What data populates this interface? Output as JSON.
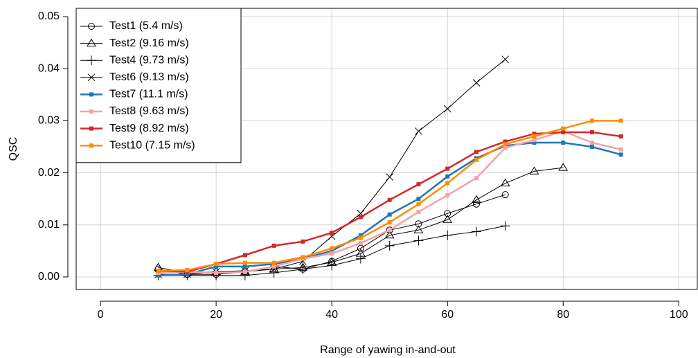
{
  "chart_data": {
    "type": "line",
    "xlabel": "Range of yawing in-and-out",
    "ylabel": "QSC",
    "xlim": [
      -4.2,
      103.2
    ],
    "ylim": [
      -0.0024,
      0.0516
    ],
    "xticks": [
      0,
      20,
      40,
      60,
      80,
      100
    ],
    "yticks": [
      {
        "value": 0,
        "label": "0.00"
      },
      0.01,
      0.02,
      0.03,
      0.04,
      0.05
    ],
    "grid": true,
    "legend": "top-left",
    "series": [
      {
        "name": "Test1 (5.4 m/s)",
        "color": "#000000",
        "marker": "circle",
        "x": [
          10,
          15,
          20,
          25,
          30,
          35,
          40,
          45,
          50,
          55,
          60,
          65,
          70
        ],
        "values": [
          0.0015,
          0.0005,
          0.0005,
          0.001,
          0.002,
          0.0015,
          0.003,
          0.0055,
          0.009,
          0.0102,
          0.0122,
          0.014,
          0.0158
        ]
      },
      {
        "name": "Test2 (9.16 m/s)",
        "color": "#000000",
        "marker": "triangle",
        "x": [
          10,
          15,
          20,
          25,
          30,
          35,
          40,
          45,
          50,
          55,
          60,
          65,
          70,
          75,
          80
        ],
        "values": [
          0.0018,
          0.0008,
          0.001,
          0.001,
          0.0015,
          0.0018,
          0.0028,
          0.0045,
          0.008,
          0.009,
          0.011,
          0.0148,
          0.018,
          0.0203,
          0.021
        ]
      },
      {
        "name": "Test4 (9.73 m/s)",
        "color": "#000000",
        "marker": "plus",
        "x": [
          10,
          15,
          20,
          25,
          30,
          35,
          40,
          45,
          50,
          55,
          60,
          65,
          70
        ],
        "values": [
          0.0003,
          0.0003,
          0.0003,
          0.0003,
          0.0008,
          0.0015,
          0.0022,
          0.0035,
          0.006,
          0.007,
          0.008,
          0.0087,
          0.0098
        ]
      },
      {
        "name": "Test6 (9.13 m/s)",
        "color": "#000000",
        "marker": "cross",
        "x": [
          10,
          15,
          20,
          25,
          30,
          35,
          40,
          45,
          50,
          55,
          60,
          65,
          70
        ],
        "values": [
          0.0005,
          0.0005,
          0.001,
          0.0012,
          0.0015,
          0.003,
          0.0078,
          0.0122,
          0.0192,
          0.028,
          0.0323,
          0.0373,
          0.0418
        ]
      },
      {
        "name": "Test7 (11.1 m/s)",
        "color": "#1f77b4",
        "marker": "square",
        "x": [
          10,
          15,
          20,
          25,
          30,
          35,
          40,
          45,
          50,
          55,
          60,
          65,
          70,
          75,
          80,
          85,
          90
        ],
        "values": [
          0.0003,
          0.0005,
          0.002,
          0.002,
          0.0025,
          0.0035,
          0.005,
          0.008,
          0.012,
          0.015,
          0.0193,
          0.0228,
          0.0252,
          0.0258,
          0.0258,
          0.025,
          0.0235
        ]
      },
      {
        "name": "Test8 (9.63 m/s)",
        "color": "#f7a1a8",
        "marker": "square",
        "x": [
          10,
          15,
          20,
          25,
          30,
          35,
          40,
          45,
          50,
          55,
          60,
          65,
          70,
          75,
          80,
          85,
          90
        ],
        "values": [
          0.0008,
          0.001,
          0.0008,
          0.001,
          0.002,
          0.0035,
          0.0045,
          0.0065,
          0.009,
          0.0125,
          0.0157,
          0.019,
          0.0248,
          0.0263,
          0.028,
          0.0258,
          0.0245
        ]
      },
      {
        "name": "Test9 (8.92 m/s)",
        "color": "#d62728",
        "marker": "square",
        "x": [
          10,
          15,
          20,
          25,
          30,
          35,
          40,
          45,
          50,
          55,
          60,
          65,
          70,
          75,
          80,
          85,
          90
        ],
        "values": [
          0.0012,
          0.001,
          0.0025,
          0.0042,
          0.006,
          0.0068,
          0.0085,
          0.0115,
          0.0148,
          0.0178,
          0.0208,
          0.024,
          0.026,
          0.0275,
          0.0278,
          0.0278,
          0.027
        ]
      },
      {
        "name": "Test10 (7.15 m/s)",
        "color": "#ff8c00",
        "marker": "square",
        "x": [
          10,
          15,
          20,
          25,
          30,
          35,
          40,
          45,
          50,
          55,
          60,
          65,
          70,
          75,
          80,
          85,
          90
        ],
        "values": [
          0.0012,
          0.0013,
          0.0025,
          0.0027,
          0.0027,
          0.0038,
          0.0055,
          0.0075,
          0.0105,
          0.014,
          0.018,
          0.0225,
          0.0255,
          0.027,
          0.0285,
          0.03,
          0.03
        ]
      }
    ]
  }
}
